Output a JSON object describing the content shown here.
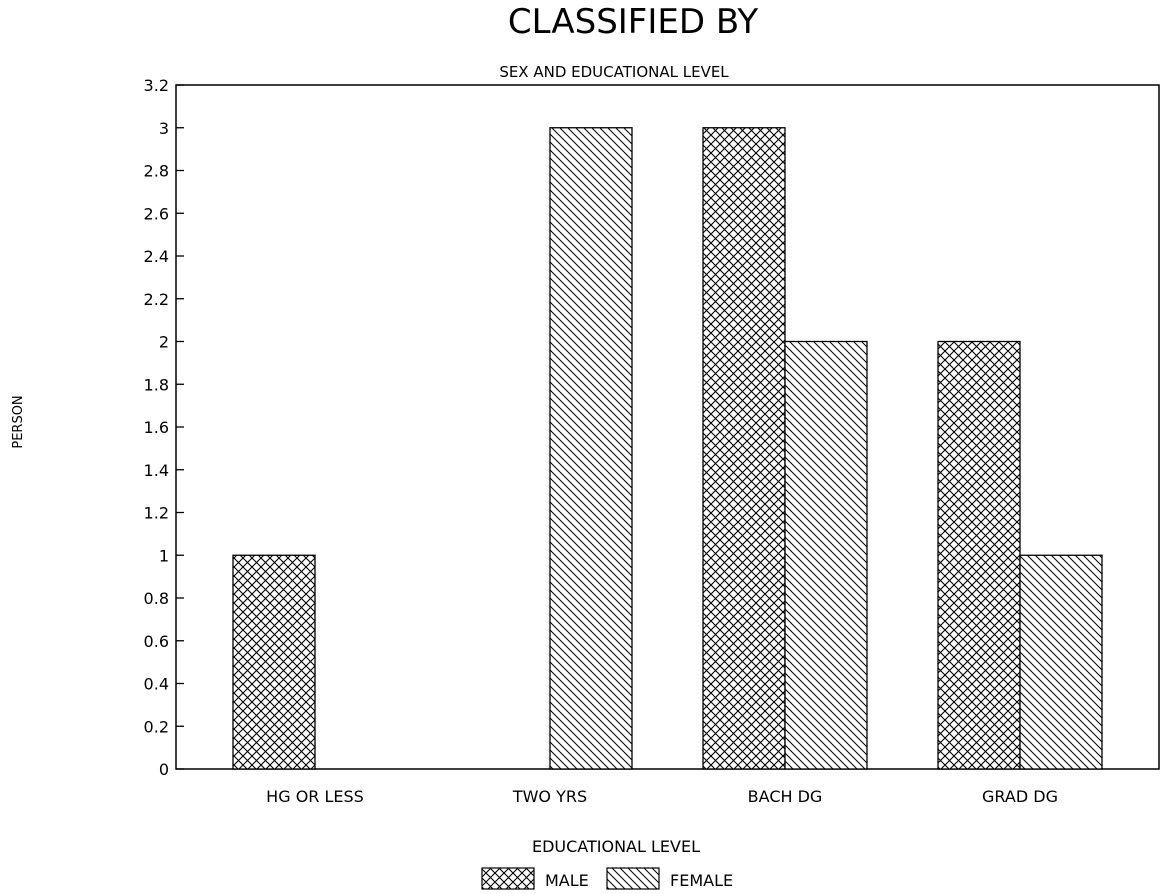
{
  "chart_data": {
    "type": "bar",
    "title": "CLASSIFIED BY",
    "subtitle": "SEX AND EDUCATIONAL LEVEL",
    "xlabel": "EDUCATIONAL LEVEL",
    "ylabel": "PERSON",
    "categories": [
      "HG OR LESS",
      "TWO YRS",
      "BACH DG",
      "GRAD DG"
    ],
    "series": [
      {
        "name": "MALE",
        "pattern": "crosshatch",
        "values": [
          1,
          0,
          3,
          2
        ]
      },
      {
        "name": "FEMALE",
        "pattern": "diagonal",
        "values": [
          0,
          3,
          2,
          1
        ]
      }
    ],
    "ylim": [
      0,
      3.2
    ],
    "yticks": [
      "0",
      "0.2",
      "0.4",
      "0.6",
      "0.8",
      "1",
      "1.2",
      "1.4",
      "1.6",
      "1.8",
      "2",
      "2.2",
      "2.4",
      "2.6",
      "2.8",
      "3",
      "3.2"
    ],
    "grid": false,
    "legend_position": "bottom-center"
  }
}
